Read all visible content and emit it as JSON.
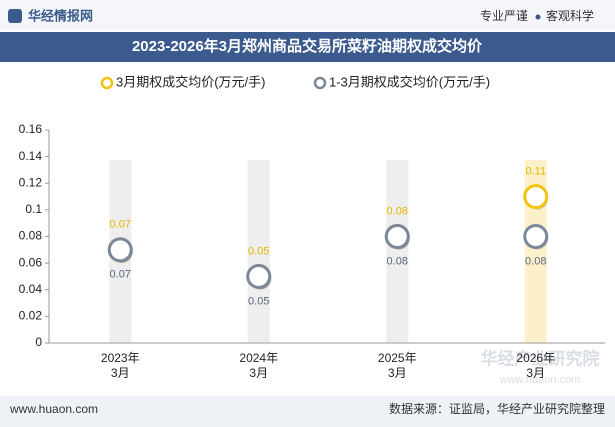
{
  "header": {
    "logo": "华经情报网",
    "slogan_left": "专业严谨",
    "slogan_right": "客观科学"
  },
  "chart_data": {
    "type": "line",
    "title": "2023-2026年3月郑州商品交易所菜籽油期权成交均价",
    "categories": [
      "2023年\n3月",
      "2024年\n3月",
      "2025年\n3月",
      "2026年\n3月"
    ],
    "series": [
      {
        "name": "3月期权成交均价(万元/手)",
        "color": "#f2c30f",
        "values": [
          0.07,
          0.05,
          0.08,
          0.11
        ]
      },
      {
        "name": "1-3月期权成交均价(万元/手)",
        "color": "#7c879a",
        "values": [
          0.07,
          0.05,
          0.08,
          0.08
        ]
      }
    ],
    "ylim": [
      0,
      0.16
    ],
    "yticks": [
      0,
      0.02,
      0.04,
      0.06,
      0.08,
      0.1,
      0.12,
      0.14,
      0.16
    ]
  },
  "watermark": {
    "name": "华经产业研究院",
    "url": "www.huaon.com"
  },
  "footer": {
    "website": "www.huaon.com",
    "source": "数据来源：证监局，华经产业研究院整理"
  }
}
